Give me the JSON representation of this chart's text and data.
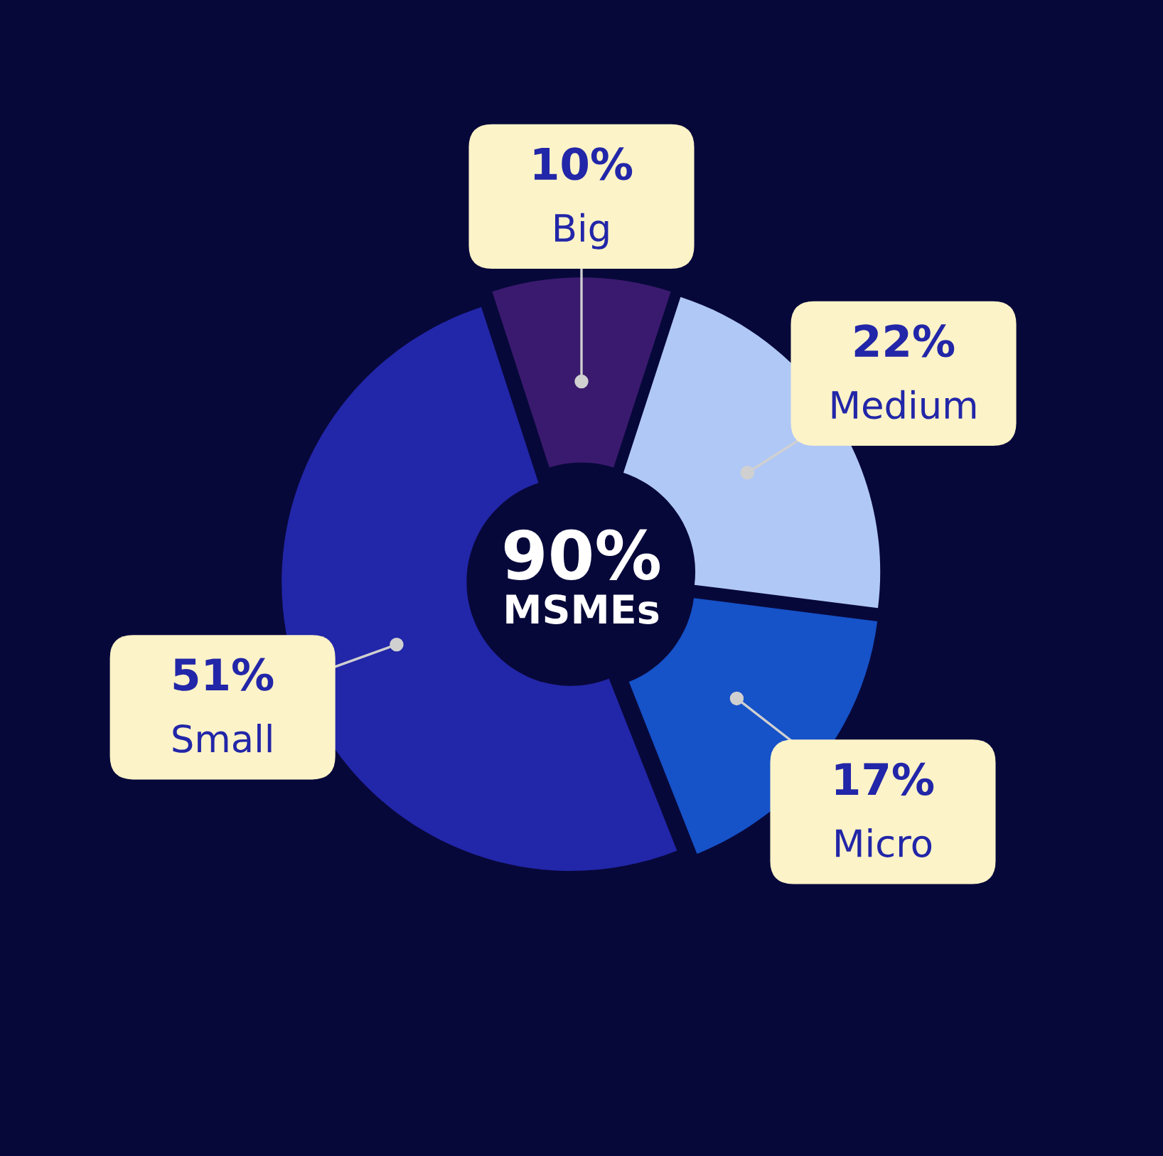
{
  "chart_data": {
    "type": "donut",
    "categories": [
      "Big",
      "Medium",
      "Micro",
      "Small"
    ],
    "values": [
      10,
      22,
      17,
      51
    ],
    "colors": [
      "#3a1a6e",
      "#b0c8f5",
      "#1652c8",
      "#2226a8"
    ],
    "value_labels": [
      "10%",
      "22%",
      "17%",
      "51%"
    ],
    "annotations": [
      "90%",
      "MSMEs"
    ]
  }
}
